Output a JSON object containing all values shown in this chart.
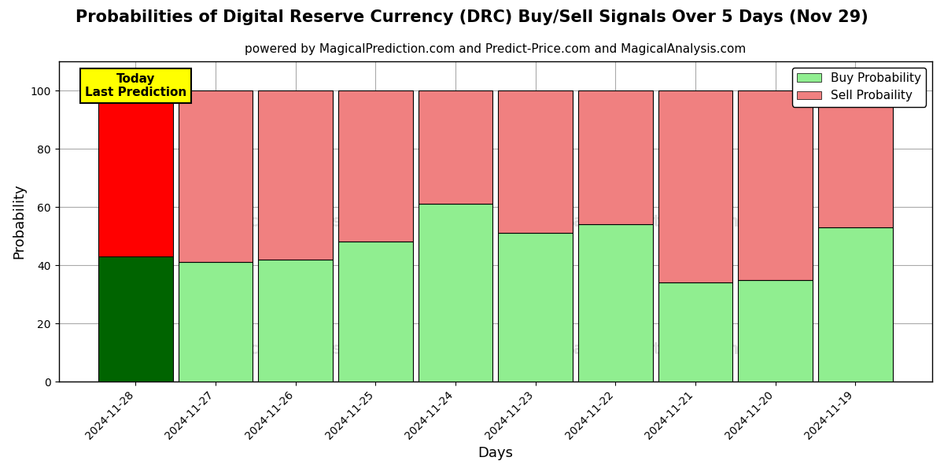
{
  "title": "Probabilities of Digital Reserve Currency (DRC) Buy/Sell Signals Over 5 Days (Nov 29)",
  "subtitle": "powered by MagicalPrediction.com and Predict-Price.com and MagicalAnalysis.com",
  "xlabel": "Days",
  "ylabel": "Probability",
  "dates": [
    "2024-11-28",
    "2024-11-27",
    "2024-11-26",
    "2024-11-25",
    "2024-11-24",
    "2024-11-23",
    "2024-11-22",
    "2024-11-21",
    "2024-11-20",
    "2024-11-19"
  ],
  "buy_values": [
    43,
    41,
    42,
    48,
    61,
    51,
    54,
    34,
    35,
    53
  ],
  "sell_values": [
    57,
    59,
    58,
    52,
    39,
    49,
    46,
    66,
    65,
    47
  ],
  "today_label": "Today\nLast Prediction",
  "today_index": 0,
  "buy_color_today": "#006400",
  "sell_color_today": "#FF0000",
  "buy_color_normal": "#90EE90",
  "sell_color_normal": "#F08080",
  "ylim": [
    0,
    110
  ],
  "dashed_line_y": 110,
  "legend_labels": [
    "Buy Probability",
    "Sell Probaility"
  ],
  "bar_width": 0.93,
  "figsize": [
    12,
    6
  ],
  "dpi": 100,
  "title_fontsize": 15,
  "subtitle_fontsize": 11,
  "axis_label_fontsize": 13,
  "tick_fontsize": 10,
  "legend_fontsize": 11,
  "today_box_color": "#FFFF00",
  "today_text_color": "#000000",
  "grid_color": "#AAAAAA",
  "background_color": "#FFFFFF"
}
